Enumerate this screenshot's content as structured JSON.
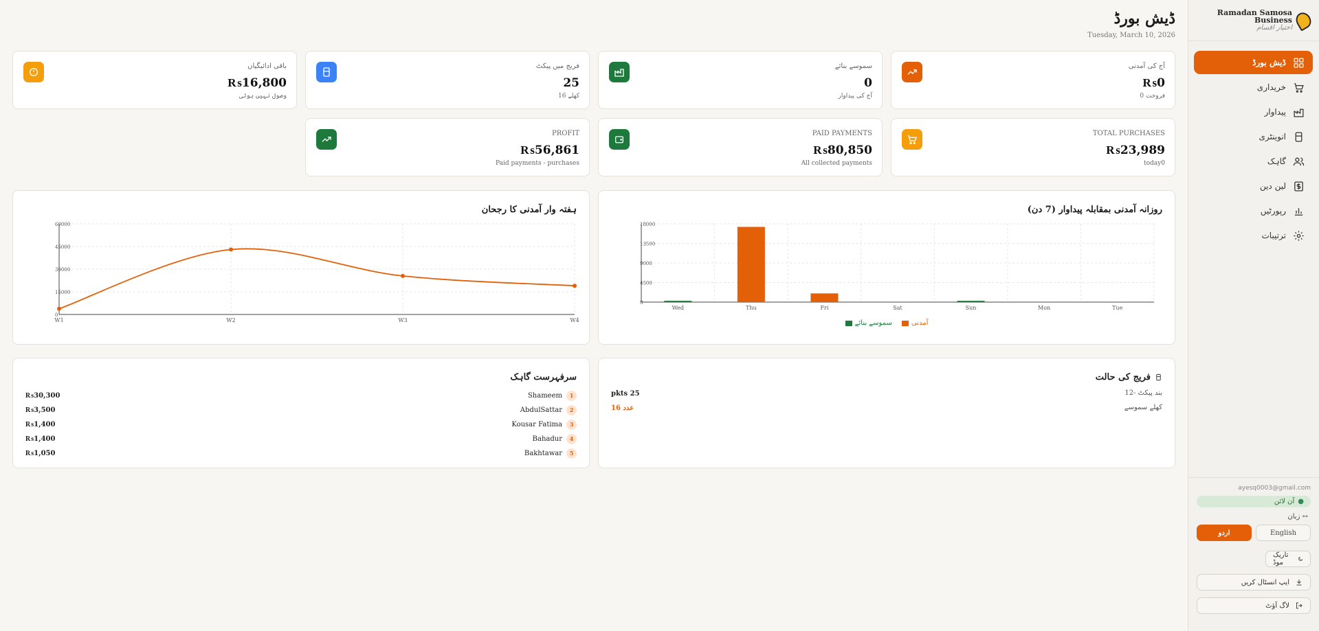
{
  "app": {
    "name": "Ramadan Samosa Business",
    "subtitle": "اختيار اقسام",
    "logo_icon": "samosa-logo-icon"
  },
  "header": {
    "title": "ڈیش بورڈ",
    "date": "Tuesday, March 10, 2026"
  },
  "sidebar": {
    "items": [
      {
        "label": "ڈیش بورڈ",
        "icon": "dashboard-icon",
        "active": true
      },
      {
        "label": "خریداری",
        "icon": "cart-icon"
      },
      {
        "label": "پیداوار",
        "icon": "factory-icon"
      },
      {
        "label": "انوینٹری",
        "icon": "fridge-icon"
      },
      {
        "label": "گاہک",
        "icon": "users-icon"
      },
      {
        "label": "لین دین",
        "icon": "dollar-icon"
      },
      {
        "label": "رپورٹیں",
        "icon": "chart-icon"
      },
      {
        "label": "ترتیبات",
        "icon": "gear-icon"
      }
    ],
    "email": "ayesq0003@gmail.com",
    "status": "آن لائن",
    "language_label": "زبان",
    "lang_english": "English",
    "lang_urdu": "اردو",
    "dark_mode": "تاریک موڈ",
    "install_app": "ایپ انسٹال کریں",
    "logout": "لاگ آؤٹ"
  },
  "stats": {
    "row1": [
      {
        "label": "آج کی آمدنی",
        "value": "₨0",
        "sub": "0 فروخت",
        "color": "#e35f08",
        "icon": "trend-up-icon"
      },
      {
        "label": "سموسے بنائے",
        "value": "0",
        "sub": "آج کی پیداوار",
        "color": "#1e7a3c",
        "icon": "factory-icon"
      },
      {
        "label": "فریج میں پیکٹ",
        "value": "25",
        "sub": "16 کھلے",
        "color": "#3b82f6",
        "icon": "fridge-icon"
      },
      {
        "label": "باقی ادائیگیاں",
        "value": "₨16,800",
        "sub": "وصول نہیں ہوئی",
        "color": "#f59e0b",
        "icon": "alert-circle-icon"
      }
    ],
    "row2": [
      {
        "label": "TOTAL PURCHASES",
        "value": "₨23,989",
        "sub": "today0",
        "color": "#f59e0b",
        "icon": "cart-icon"
      },
      {
        "label": "PAID PAYMENTS",
        "value": "₨80,850",
        "sub": "All collected payments",
        "color": "#1e7a3c",
        "icon": "wallet-icon"
      },
      {
        "label": "PROFIT",
        "value": "₨56,861",
        "sub": "Paid payments - purchases",
        "color": "#1e7a3c",
        "icon": "trend-up-icon"
      }
    ]
  },
  "daily_chart": {
    "title": "روزانہ آمدنی بمقابلہ پیداوار (7 دن)",
    "legend_income": "آمدنی",
    "legend_production": "سموسے بنائے",
    "income_color": "#e35f08",
    "production_color": "#1e7a3c"
  },
  "weekly_chart": {
    "title": "ہفتہ وار آمدنی کا رجحان",
    "line_color": "#e35f08"
  },
  "chart_data": [
    {
      "type": "bar",
      "categories": [
        "Wed",
        "Thu",
        "Fri",
        "Sat",
        "Sun",
        "Mon",
        "Tue"
      ],
      "series": [
        {
          "name": "آمدنی",
          "values": [
            0,
            17300,
            2000,
            0,
            0,
            0,
            0
          ]
        },
        {
          "name": "سموسے بنائے",
          "values": [
            300,
            0,
            0,
            0,
            300,
            0,
            0
          ]
        }
      ],
      "yticks": [
        "0",
        "4500",
        "9000",
        "13500",
        "18000"
      ],
      "ylim": [
        0,
        18000
      ],
      "grid": true,
      "legend": "bottom"
    },
    {
      "type": "line",
      "x": [
        "W1",
        "W2",
        "W3",
        "W4"
      ],
      "values": [
        3800,
        43000,
        25500,
        19000
      ],
      "yticks": [
        "0",
        "15000",
        "30000",
        "45000",
        "60000"
      ],
      "ylim": [
        0,
        60000
      ],
      "grid": true
    }
  ],
  "fridge": {
    "title": "فریج کی حالت",
    "line1": "12- بند پیکٹ",
    "line2": "کھلے سموسے",
    "packets": "pkts 25",
    "open": "16 عدد"
  },
  "top_customers": {
    "title": "سرفہرست گاہک",
    "rows": [
      {
        "rank": "1",
        "name": "Shameem",
        "amount": "₨30,300"
      },
      {
        "rank": "2",
        "name": "AbdulSattar",
        "amount": "₨3,500"
      },
      {
        "rank": "3",
        "name": "Kousar Fatima",
        "amount": "₨1,400"
      },
      {
        "rank": "4",
        "name": "Bahadur",
        "amount": "₨1,400"
      },
      {
        "rank": "5",
        "name": "Bakhtawar",
        "amount": "₨1,050"
      }
    ]
  }
}
